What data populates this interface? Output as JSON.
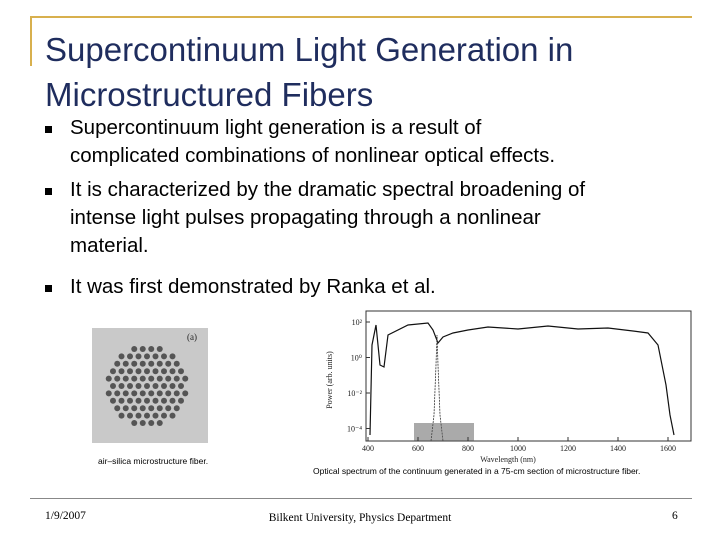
{
  "title": [
    "Supercontinuum Light Generation in",
    "Microstructured Fibers"
  ],
  "bullets": [
    [
      "Supercontinuum light generation is a result of",
      "complicated combinations of nonlinear optical effects."
    ],
    [
      "It is characterized by the dramatic spectral broadening of",
      "intense light pulses propagating through a nonlinear",
      "material."
    ],
    [
      "It was first demonstrated by Ranka et al."
    ]
  ],
  "figures": [
    {
      "label": "(a)",
      "caption": "air–silica microstructure fiber."
    },
    {
      "caption": "Optical spectrum of the continuum generated in a 75-cm section of microstructure fiber.",
      "ylabel": "Power (arb. units)",
      "xlabel": "Wavelength (nm)",
      "xticks": [
        "400",
        "600",
        "800",
        "1000",
        "1200",
        "1400",
        "1600"
      ],
      "yticks": [
        "10²",
        "10⁰",
        "10⁻²",
        "10⁻⁴"
      ]
    }
  ],
  "footer": {
    "date": "1/9/2007",
    "center": "Bilkent University, Physics Department",
    "page": "6"
  }
}
